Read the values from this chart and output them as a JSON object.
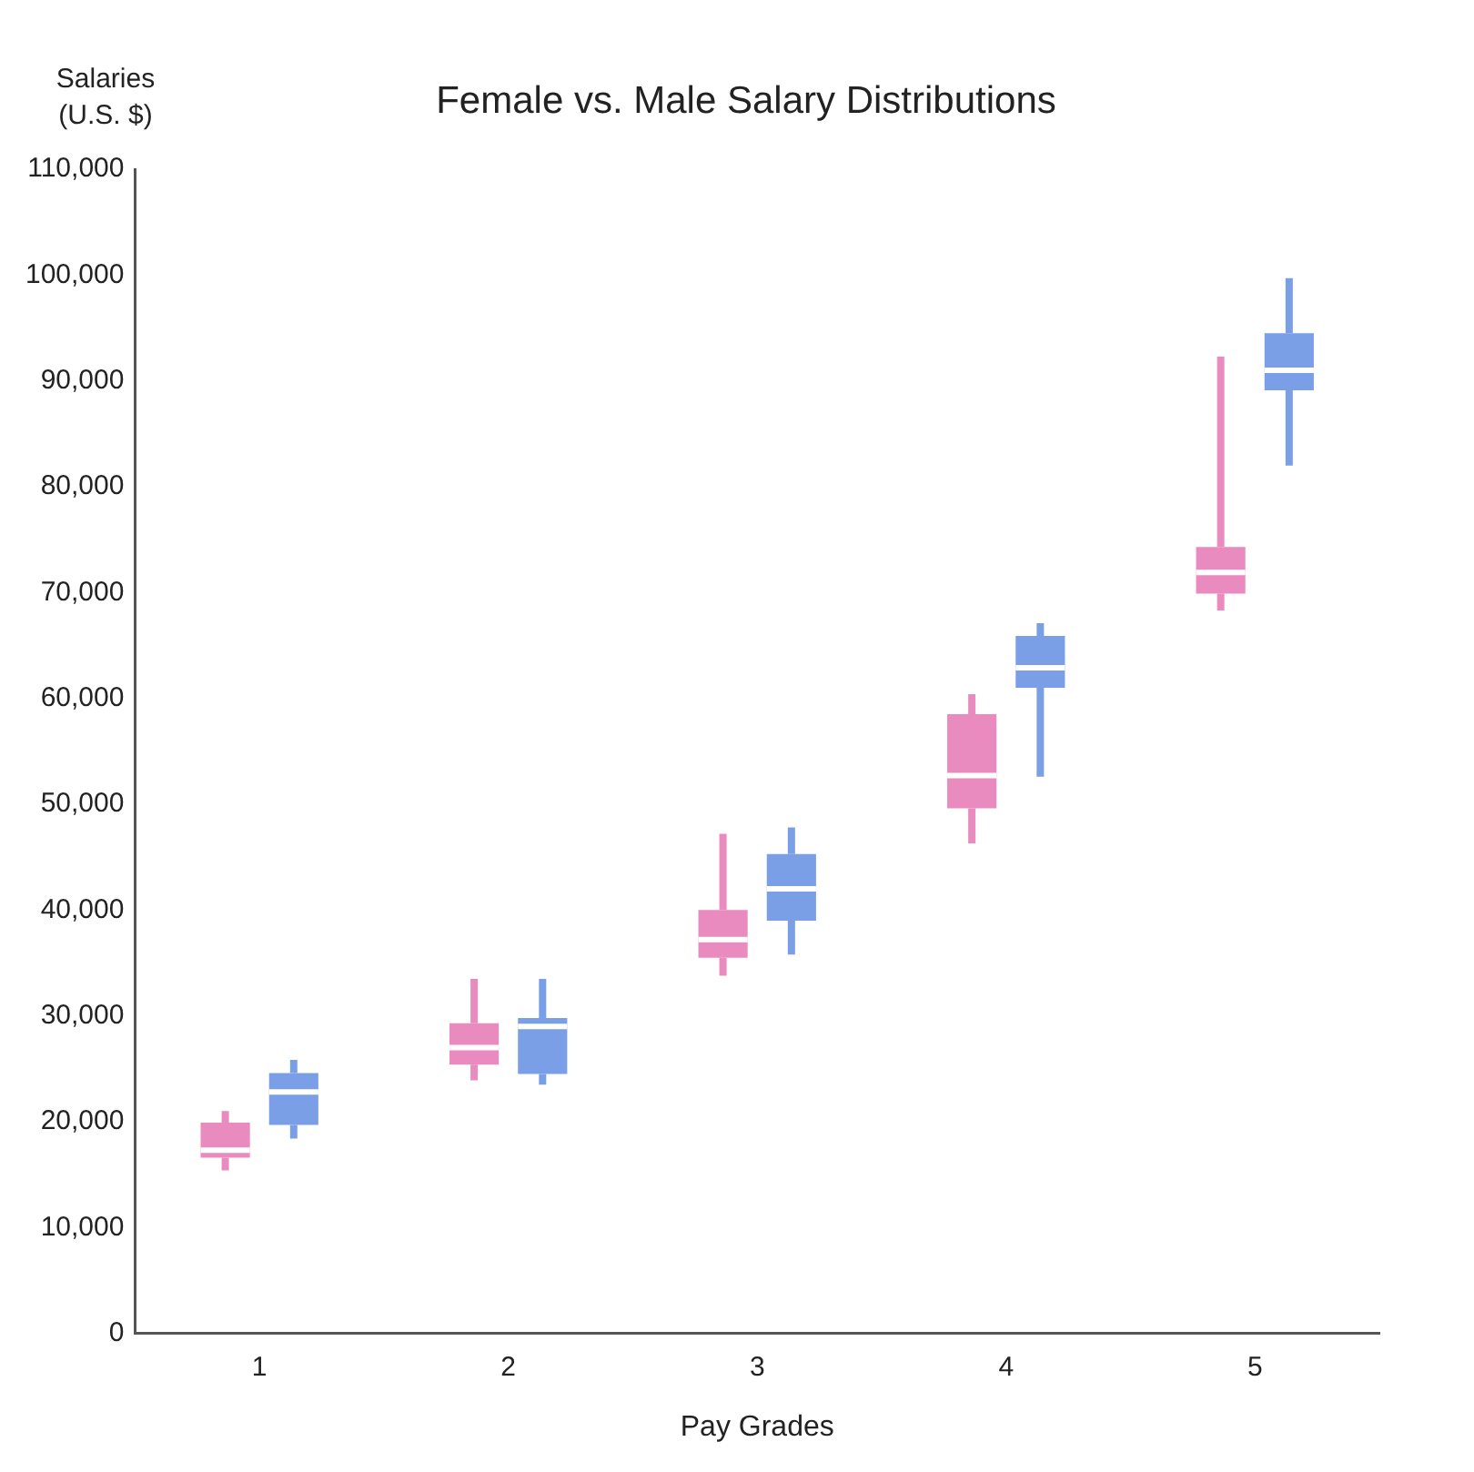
{
  "chart_data": {
    "type": "box",
    "title": "Female vs. Male Salary Distributions",
    "xlabel": "Pay Grades",
    "ylabel": "Salaries (U.S. $)",
    "categories": [
      "1",
      "2",
      "3",
      "4",
      "5"
    ],
    "series": [
      {
        "color": "#e98bbf",
        "boxes": [
          {
            "low": 15400,
            "q1": 16600,
            "median": 17300,
            "q3": 19900,
            "high": 21000
          },
          {
            "low": 23900,
            "q1": 25400,
            "median": 27000,
            "q3": 29300,
            "high": 33500
          },
          {
            "low": 33800,
            "q1": 35500,
            "median": 37200,
            "q3": 40000,
            "high": 47200
          },
          {
            "low": 46300,
            "q1": 49600,
            "median": 52700,
            "q3": 58500,
            "high": 60400
          },
          {
            "low": 68300,
            "q1": 69900,
            "median": 71900,
            "q3": 74300,
            "high": 92300
          }
        ]
      },
      {
        "color": "#7a9fe6",
        "boxes": [
          {
            "low": 18400,
            "q1": 19700,
            "median": 22800,
            "q3": 24600,
            "high": 25850
          },
          {
            "low": 23500,
            "q1": 24500,
            "median": 29000,
            "q3": 29800,
            "high": 33500
          },
          {
            "low": 35800,
            "q1": 39000,
            "median": 42000,
            "q3": 45300,
            "high": 47800
          },
          {
            "low": 52600,
            "q1": 61000,
            "median": 62900,
            "q3": 65900,
            "high": 67100
          },
          {
            "low": 82000,
            "q1": 89100,
            "median": 91000,
            "q3": 94500,
            "high": 99700
          }
        ]
      }
    ],
    "ylim": [
      0,
      110000
    ],
    "yticks": [
      {
        "value": 0,
        "label": "0"
      },
      {
        "value": 10000,
        "label": "10,000"
      },
      {
        "value": 20000,
        "label": "20,000"
      },
      {
        "value": 30000,
        "label": "30,000"
      },
      {
        "value": 40000,
        "label": "40,000"
      },
      {
        "value": 50000,
        "label": "50,000"
      },
      {
        "value": 60000,
        "label": "60,000"
      },
      {
        "value": 70000,
        "label": "70,000"
      },
      {
        "value": 80000,
        "label": "80,000"
      },
      {
        "value": 90000,
        "label": "90,000"
      },
      {
        "value": 100000,
        "label": "100,000"
      },
      {
        "value": 110000,
        "label": "110,000"
      }
    ],
    "grid": false,
    "legend": false
  }
}
